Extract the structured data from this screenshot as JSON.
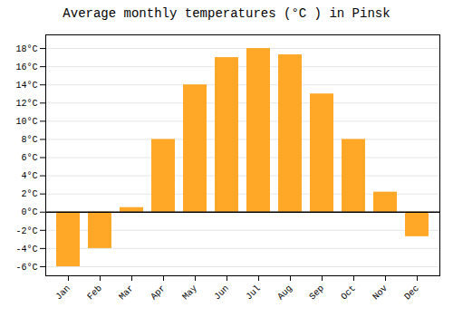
{
  "chart_data": {
    "type": "bar",
    "title": "Average monthly temperatures (°C ) in Pinsk",
    "categories": [
      "Jan",
      "Feb",
      "Mar",
      "Apr",
      "May",
      "Jun",
      "Jul",
      "Aug",
      "Sep",
      "Oct",
      "Nov",
      "Dec"
    ],
    "values": [
      -6,
      -4,
      0.5,
      8,
      14,
      17,
      18,
      17.3,
      13,
      8,
      2.2,
      -2.7
    ],
    "color": "#FFA726",
    "ylim": [
      -7,
      19.5
    ],
    "yticks": [
      {
        "value": -6,
        "label": "-6°C"
      },
      {
        "value": -4,
        "label": "-4°C"
      },
      {
        "value": -2,
        "label": "-2°C"
      },
      {
        "value": 0,
        "label": "0°C"
      },
      {
        "value": 2,
        "label": "2°C"
      },
      {
        "value": 4,
        "label": "4°C"
      },
      {
        "value": 6,
        "label": "6°C"
      },
      {
        "value": 8,
        "label": "8°C"
      },
      {
        "value": 10,
        "label": "10°C"
      },
      {
        "value": 12,
        "label": "12°C"
      },
      {
        "value": 14,
        "label": "14°C"
      },
      {
        "value": 16,
        "label": "16°C"
      },
      {
        "value": 18,
        "label": "18°C"
      }
    ],
    "grid": true
  }
}
